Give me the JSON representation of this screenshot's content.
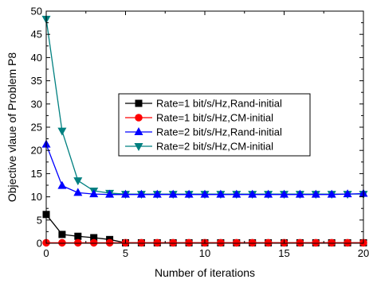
{
  "chart_data": {
    "type": "line",
    "title": "",
    "xlabel": "Number of iterations",
    "ylabel": "Objective vlaue of Problem P8",
    "xlim": [
      0,
      20
    ],
    "ylim": [
      0,
      50
    ],
    "xticks": [
      0,
      5,
      10,
      15,
      20
    ],
    "yticks": [
      0,
      5,
      10,
      15,
      20,
      25,
      30,
      35,
      40,
      45,
      50
    ],
    "grid": false,
    "legend_position": "center",
    "x": [
      0,
      1,
      2,
      3,
      4,
      5,
      6,
      7,
      8,
      9,
      10,
      11,
      12,
      13,
      14,
      15,
      16,
      17,
      18,
      19,
      20
    ],
    "series": [
      {
        "name": "Rate=1 bit/s/Hz,Rand-initial",
        "color": "#000000",
        "marker": "square",
        "values": [
          6.2,
          1.9,
          1.5,
          1.2,
          0.8,
          0.1,
          0.1,
          0.1,
          0.1,
          0.1,
          0.1,
          0.1,
          0.1,
          0.1,
          0.1,
          0.1,
          0.1,
          0.1,
          0.1,
          0.1,
          0.1
        ]
      },
      {
        "name": "Rate=1 bit/s/Hz,CM-initial",
        "color": "#ff0000",
        "marker": "circle",
        "values": [
          0.1,
          0.1,
          0.1,
          0.1,
          0.1,
          0.1,
          0.1,
          0.1,
          0.1,
          0.1,
          0.1,
          0.1,
          0.1,
          0.1,
          0.1,
          0.1,
          0.1,
          0.1,
          0.1,
          0.1,
          0.1
        ]
      },
      {
        "name": "Rate=2 bit/s/Hz,Rand-initial",
        "color": "#0000ff",
        "marker": "triangle-up",
        "values": [
          21.3,
          12.4,
          10.9,
          10.6,
          10.5,
          10.5,
          10.5,
          10.5,
          10.5,
          10.5,
          10.5,
          10.5,
          10.5,
          10.5,
          10.5,
          10.5,
          10.5,
          10.5,
          10.5,
          10.6,
          10.7
        ]
      },
      {
        "name": "Rate=2 bit/s/Hz,CM-initial",
        "color": "#008080",
        "marker": "triangle-down",
        "values": [
          48.3,
          24.2,
          13.5,
          11.3,
          10.8,
          10.6,
          10.6,
          10.6,
          10.6,
          10.6,
          10.6,
          10.6,
          10.6,
          10.6,
          10.6,
          10.6,
          10.6,
          10.6,
          10.6,
          10.6,
          10.6
        ]
      }
    ]
  }
}
